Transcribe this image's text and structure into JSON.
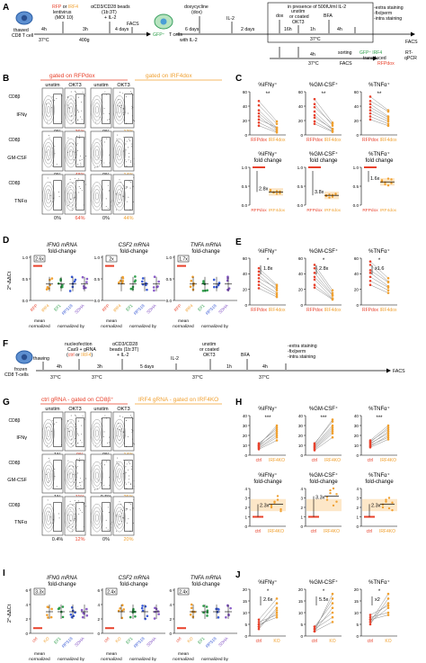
{
  "colors": {
    "red": "#e8402a",
    "orange": "#f0a030",
    "grey": "#9a9a9a",
    "blue": "#3b5bd6",
    "green": "#2e9e4a",
    "purple": "#8a5cc8",
    "teal": "#3aa6b0",
    "shade": "#fde7c8"
  },
  "panels": {
    "A": "A",
    "B": "B",
    "C": "C",
    "D": "D",
    "E": "E",
    "F": "F",
    "G": "G",
    "H": "H",
    "I": "I",
    "J": "J"
  },
  "A": {
    "thawed": "thawed",
    "cd8": "CD8 T cell",
    "rfp": "RFP",
    "or": " or ",
    "irf4": "IRF4",
    "lenti": "lentivirus",
    "moi": "(MOI 10)",
    "beads1": "αCD3/CD28 beads",
    "beads2": "(1b:3T)",
    "beads3": "+ IL-2",
    "t4h": "4h",
    "t37": "37°C",
    "t3h": "3h",
    "t400g": "400g",
    "t4days": "4 days",
    "facs": "FACS",
    "gfpT": "GFP⁺",
    "tcells": "T cells",
    "dox1": "doxycycline",
    "dox2": "(dox)",
    "t6days": "6 days",
    "withIL2": "with IL-2",
    "il2": "IL-2",
    "t2days": "2 days",
    "presence": "in presence of 500IU/ml IL-2",
    "dox": "dox",
    "unstim": "unstim",
    "orcoated": "or coated",
    "okt3": "OKT3",
    "bfa": "BFA",
    "extra1": "-extra staining",
    "extra2": "-fix/perm",
    "extra3": "-intra staining",
    "t1h": "1h",
    "t4h2": "4h",
    "facs2": "FACS",
    "sorting": "sorting",
    "facsb": "FACS",
    "gfpirf4": "GFP⁺ IRF4",
    "transduced": "transduced",
    "rfpdox": "RFPdox",
    "rt": "RT-",
    "qpcr": "qPCR",
    "t16h": "16h"
  },
  "B": {
    "headRfp": "gated on RFPdox",
    "headIrf": "gated on IRF4dox",
    "cols": [
      "unstim",
      "OKT3",
      "unstim",
      "OKT3"
    ],
    "yaxis": "CD8β",
    "rowLabels": [
      "IFNγ",
      "GM-CSF",
      "TNFα"
    ],
    "pcts": [
      [
        "0%",
        "36%",
        "0%",
        "13%"
      ],
      [
        "0%",
        "48%",
        "0%",
        "14%"
      ],
      [
        "0%",
        "64%",
        "0%",
        "44%"
      ]
    ]
  },
  "C": {
    "top": [
      {
        "title": "%IFNγ⁺",
        "sig": "**",
        "ylim": [
          0,
          70
        ],
        "ticks": [
          "0",
          "20",
          "40",
          "60"
        ]
      },
      {
        "title": "%GM-CSF⁺",
        "sig": "**",
        "ylim": [
          0,
          70
        ],
        "ticks": [
          "0",
          "20",
          "40",
          "60"
        ]
      },
      {
        "title": "%TNFα⁺",
        "sig": "**",
        "ylim": [
          0,
          70
        ],
        "ticks": [
          "0",
          "20",
          "40",
          "60"
        ]
      }
    ],
    "xl": [
      "RFPdox",
      "IRF4dox"
    ],
    "bottom": [
      {
        "title": "%IFNγ⁺",
        "sub": "fold change",
        "fold": "2.8x",
        "ticks": [
          "0.0",
          "0.5",
          "1.0"
        ]
      },
      {
        "title": "%GM-CSF⁺",
        "sub": "fold change",
        "fold": "3.8x",
        "ticks": [
          "0.0",
          "0.5",
          "1.0"
        ]
      },
      {
        "title": "%TNFα⁺",
        "sub": "fold change",
        "fold": "1.6x",
        "ticks": [
          "0.0",
          "0.5",
          "1.0"
        ]
      }
    ],
    "bxl": [
      "RFPdox",
      "IRF4dox"
    ]
  },
  "D": {
    "ylabel": "2^-ΔΔCt",
    "groups": [
      {
        "title": "IFNG mRNA",
        "sub": "fold-change",
        "fold": "2.6x"
      },
      {
        "title": "CSF2 mRNA",
        "sub": "fold-change",
        "fold": "2x"
      },
      {
        "title": "TNFA mRNA",
        "sub": "fold-change",
        "fold": "1.7x"
      }
    ],
    "ticks": [
      "0.0",
      "0.5",
      "1.0"
    ],
    "xl": [
      "RFP",
      "IRF4",
      "EF1",
      "RPS18",
      "SDHA"
    ],
    "foot1": "mean",
    "foot2": "normalized",
    "foot3": "normalized by"
  },
  "E": {
    "plots": [
      {
        "title": "%IFNγ⁺",
        "fold": "1.8x",
        "sig": "*"
      },
      {
        "title": "%GM-CSF⁺",
        "fold": "2.8x",
        "sig": "*"
      },
      {
        "title": "%TNFα⁺",
        "fold": "x1.6",
        "sig": "*"
      }
    ],
    "ticks": [
      "0",
      "20",
      "40",
      "60"
    ],
    "xl": [
      "RFPdox",
      "IRF4dox"
    ]
  },
  "F": {
    "frozen": "frozen",
    "cd8": "CD8 T-cells",
    "thawing": "thawing",
    "nucleo": "nucleofection",
    "cas9": "Cas9 + gRNA",
    "ctrl": "ctrl",
    "or": " or ",
    "irf4": "IRF4",
    "beads1": "αCD3/CD28",
    "beads2": "beads (1b:3T)",
    "beads3": "+ IL-2",
    "t4h": "4h",
    "t3h": "3h",
    "t37": "37°C",
    "t5days": "5 days",
    "il2": "IL-2",
    "unstim": "unstim",
    "orcoated": "or coated",
    "okt3": "OKT3",
    "bfa": "BFA",
    "t1h": "1h",
    "t4h2": "4h",
    "extra1": "-extra staining",
    "extra2": "-fix/perm",
    "extra3": "-intra staining",
    "facs": "FACS"
  },
  "G": {
    "headCtrl": "ctrl gRNA - gated on CD8β⁺",
    "headIrf": "IRF4 gRNA - gated on IRF4KO",
    "cols": [
      "unstim",
      "OKT3",
      "unstim",
      "OKT3"
    ],
    "rowLabels": [
      "IFNγ",
      "GM-CSF",
      "TNFα"
    ],
    "yaxis": "CD8β",
    "pcts": [
      [
        "1%",
        "9%",
        "0%",
        "14%"
      ],
      [
        "1%",
        "11%",
        "0.5%",
        "25%"
      ],
      [
        "0.4%",
        "12%",
        "0%",
        "20%"
      ]
    ]
  },
  "H": {
    "top": [
      {
        "title": "%IFNγ⁺",
        "sig": "***"
      },
      {
        "title": "%GM-CSF⁺",
        "sig": "***"
      },
      {
        "title": "%TNFα⁺",
        "sig": "***"
      }
    ],
    "topTicks": [
      "0",
      "10",
      "20",
      "30",
      "40"
    ],
    "bottom": [
      {
        "title": "%IFNγ⁺",
        "sub": "fold-change",
        "fold": "2.3x"
      },
      {
        "title": "%GM-CSF⁺",
        "sub": "fold-change",
        "fold": "3.3x"
      },
      {
        "title": "%TNFα⁺",
        "sub": "fold-change",
        "fold": "2.3x"
      }
    ],
    "botTicks": [
      "0",
      "1",
      "2",
      "3",
      "4"
    ],
    "xl": [
      "ctrl",
      "IRF4KO"
    ]
  },
  "I": {
    "ylabel": "2^-ΔΔCt",
    "groups": [
      {
        "title": "IFNG mRNA",
        "sub": "fold-change",
        "fold": "3.3x"
      },
      {
        "title": "CSF2 mRNA",
        "sub": "fold-change",
        "fold": "2.4x"
      },
      {
        "title": "TNFA mRNA",
        "sub": "fold-change",
        "fold": "2.4x"
      }
    ],
    "ticks": [
      "0",
      "2",
      "4",
      "6"
    ],
    "xl": [
      "ctrl",
      "KO",
      "EF1",
      "RPS18",
      "SDHA"
    ],
    "foot1": "mean",
    "foot2": "normalized",
    "foot3": "normalized by"
  },
  "J": {
    "plots": [
      {
        "title": "%IFNγ⁺",
        "fold": "2.6x",
        "sig": "*"
      },
      {
        "title": "%GM-CSF⁺",
        "fold": "5.5x",
        "sig": "*"
      },
      {
        "title": "%TNFα⁺",
        "fold": "x2",
        "sig": "*"
      }
    ],
    "ticks": [
      "0",
      "5",
      "10",
      "15",
      "20"
    ],
    "xl": [
      "ctrl",
      "KO"
    ]
  }
}
